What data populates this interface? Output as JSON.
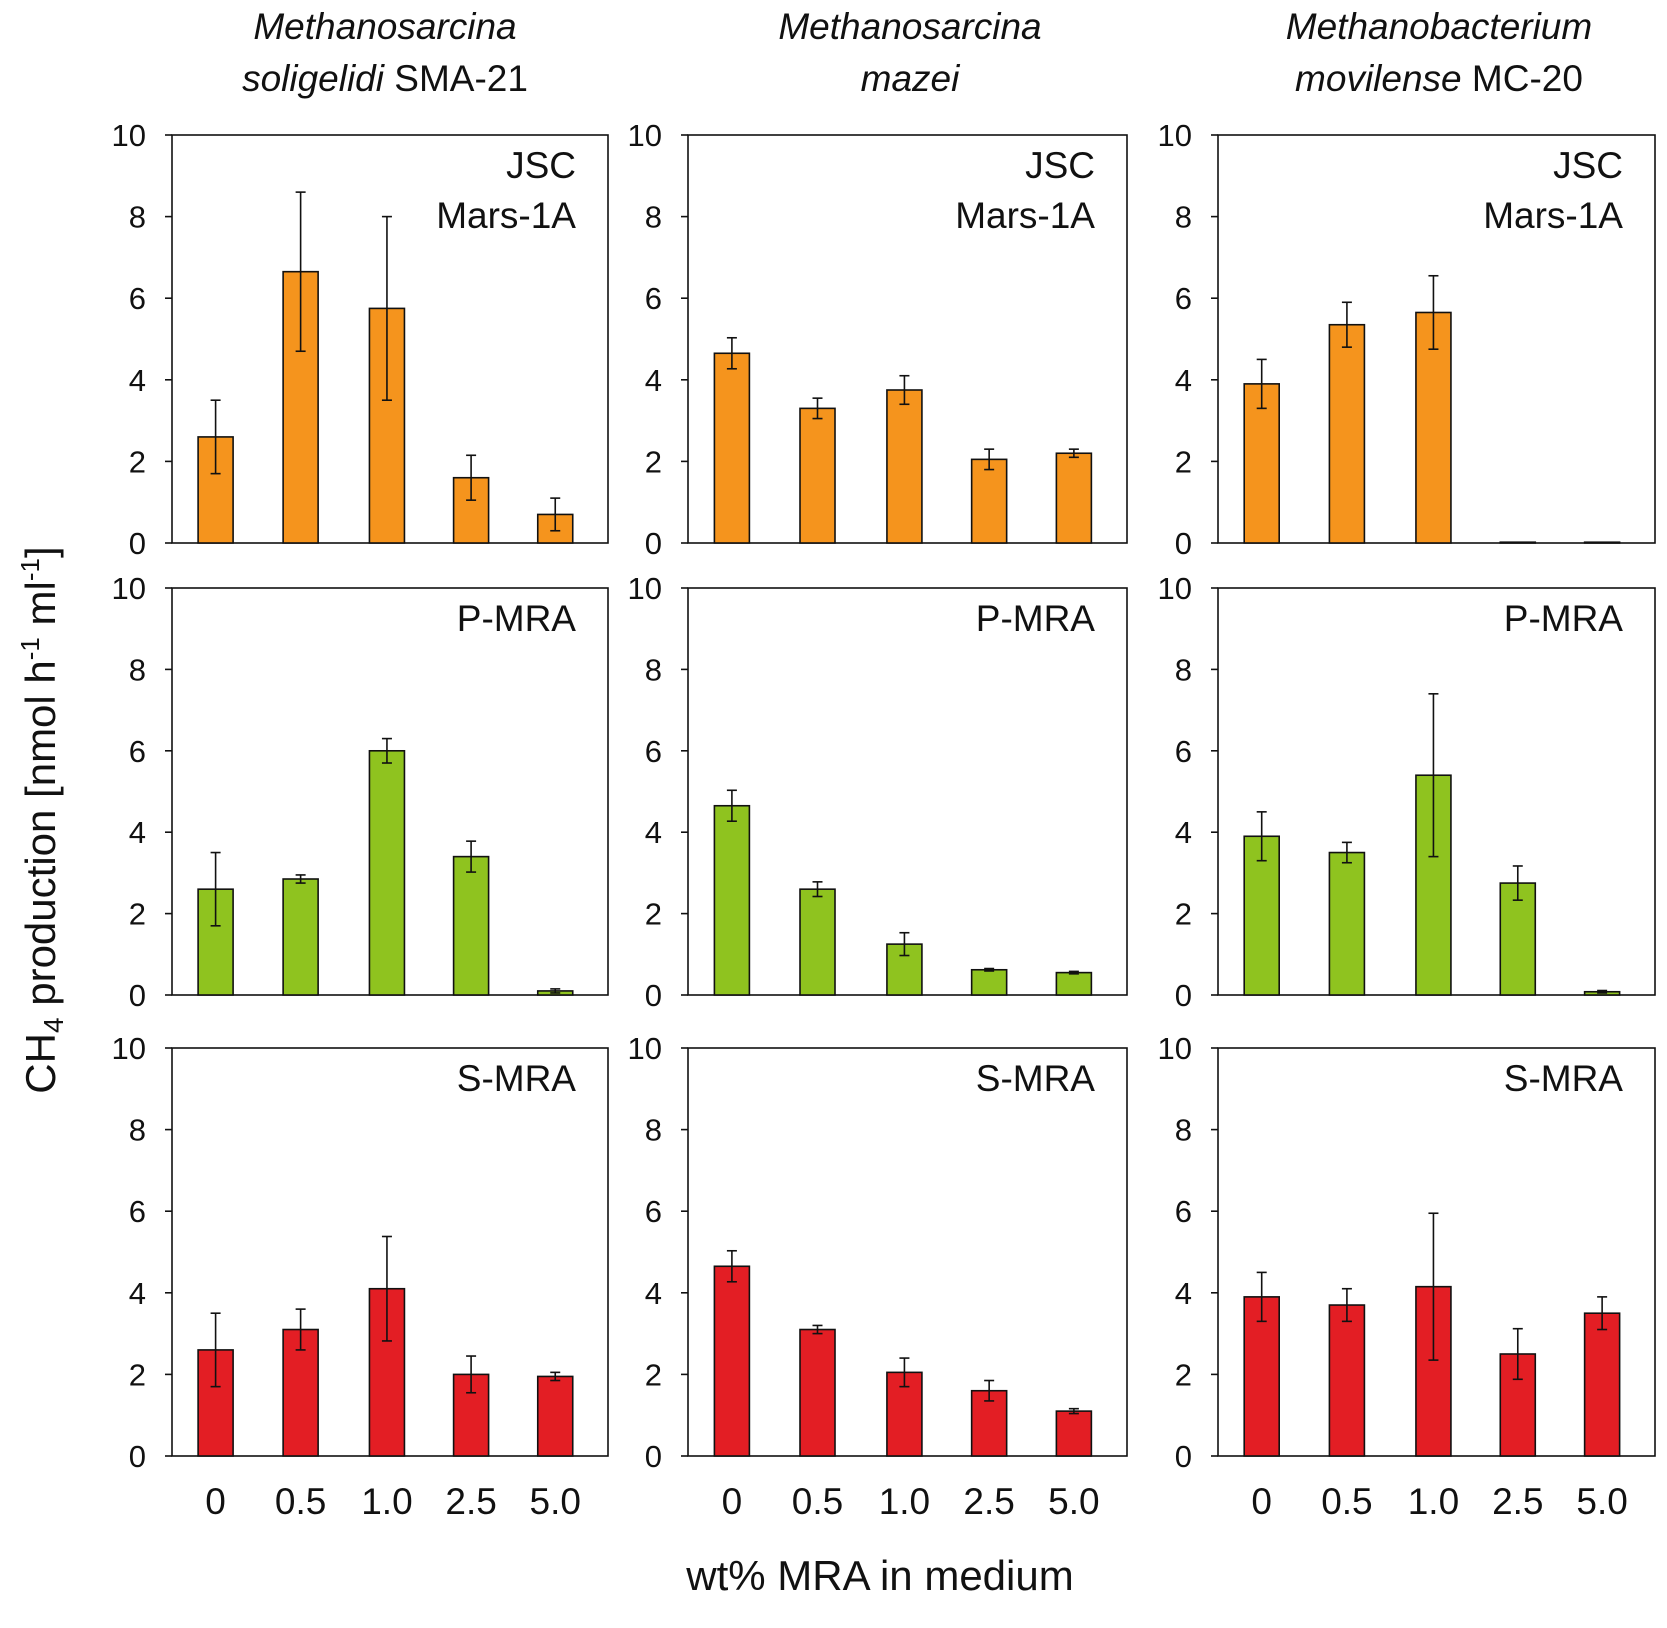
{
  "figure": {
    "xlabel": "wt% MRA in medium",
    "ylabel_main": "CH",
    "ylabel_sub": "4",
    "ylabel_rest": " production [nmol h",
    "ylabel_sup1": "-1",
    "ylabel_mid": " ml",
    "ylabel_sup2": "-1",
    "ylabel_end": "]"
  },
  "columns": [
    {
      "italic_line1": "Methanosarcina",
      "italic_line2": "soligelidi",
      "plain_line2": " SMA-21"
    },
    {
      "italic_line1": "Methanosarcina",
      "italic_line2": "mazei",
      "plain_line2": ""
    },
    {
      "italic_line1": "Methanobacterium",
      "italic_line2": "movilense",
      "plain_line2": " MC-20"
    }
  ],
  "colors": {
    "JSC Mars-1A": "#f5941d",
    "P-MRA": "#8fc31f",
    "S-MRA": "#e31e24",
    "axis": "#111111"
  },
  "chart_data": [
    {
      "type": "bar",
      "organism": "Methanosarcina soligelidi SMA-21",
      "medium": "JSC Mars-1A",
      "panel_label": [
        "JSC",
        "Mars-1A"
      ],
      "categories": [
        "0",
        "0.5",
        "1.0",
        "2.5",
        "5.0"
      ],
      "values": [
        2.6,
        6.65,
        5.75,
        1.6,
        0.7
      ],
      "errors": [
        0.9,
        1.95,
        2.25,
        0.55,
        0.4
      ],
      "yticks": [
        "0",
        "2",
        "4",
        "6",
        "8",
        "10"
      ],
      "ylim": [
        0,
        10
      ],
      "xlabel": "wt% MRA in medium"
    },
    {
      "type": "bar",
      "organism": "Methanosarcina mazei",
      "medium": "JSC Mars-1A",
      "panel_label": [
        "JSC",
        "Mars-1A"
      ],
      "categories": [
        "0",
        "0.5",
        "1.0",
        "2.5",
        "5.0"
      ],
      "values": [
        4.65,
        3.3,
        3.75,
        2.05,
        2.2
      ],
      "errors": [
        0.38,
        0.25,
        0.35,
        0.25,
        0.1
      ],
      "yticks": [
        "0",
        "2",
        "4",
        "6",
        "8",
        "10"
      ],
      "ylim": [
        0,
        10
      ],
      "xlabel": "wt% MRA in medium"
    },
    {
      "type": "bar",
      "organism": "Methanobacterium movilense MC-20",
      "medium": "JSC Mars-1A",
      "panel_label": [
        "JSC",
        "Mars-1A"
      ],
      "categories": [
        "0",
        "0.5",
        "1.0",
        "2.5",
        "5.0"
      ],
      "values": [
        3.9,
        5.35,
        5.65,
        0.02,
        0.0
      ],
      "errors": [
        0.6,
        0.55,
        0.9,
        0.0,
        0.0
      ],
      "yticks": [
        "0",
        "2",
        "4",
        "6",
        "8",
        "10"
      ],
      "ylim": [
        0,
        10
      ],
      "xlabel": "wt% MRA in medium"
    },
    {
      "type": "bar",
      "organism": "Methanosarcina soligelidi SMA-21",
      "medium": "P-MRA",
      "panel_label": [
        "P-MRA"
      ],
      "categories": [
        "0",
        "0.5",
        "1.0",
        "2.5",
        "5.0"
      ],
      "values": [
        2.6,
        2.85,
        6.0,
        3.4,
        0.1
      ],
      "errors": [
        0.9,
        0.1,
        0.3,
        0.38,
        0.05
      ],
      "yticks": [
        "0",
        "2",
        "4",
        "6",
        "8",
        "10"
      ],
      "ylim": [
        0,
        10
      ],
      "xlabel": "wt% MRA in medium"
    },
    {
      "type": "bar",
      "organism": "Methanosarcina mazei",
      "medium": "P-MRA",
      "panel_label": [
        "P-MRA"
      ],
      "categories": [
        "0",
        "0.5",
        "1.0",
        "2.5",
        "5.0"
      ],
      "values": [
        4.65,
        2.6,
        1.25,
        0.62,
        0.55
      ],
      "errors": [
        0.38,
        0.18,
        0.28,
        0.03,
        0.03
      ],
      "yticks": [
        "0",
        "2",
        "4",
        "6",
        "8",
        "10"
      ],
      "ylim": [
        0,
        10
      ],
      "xlabel": "wt% MRA in medium"
    },
    {
      "type": "bar",
      "organism": "Methanobacterium movilense MC-20",
      "medium": "P-MRA",
      "panel_label": [
        "P-MRA"
      ],
      "categories": [
        "0",
        "0.5",
        "1.0",
        "2.5",
        "5.0"
      ],
      "values": [
        3.9,
        3.5,
        5.4,
        2.75,
        0.08
      ],
      "errors": [
        0.6,
        0.25,
        2.0,
        0.42,
        0.03
      ],
      "yticks": [
        "0",
        "2",
        "4",
        "6",
        "8",
        "10"
      ],
      "ylim": [
        0,
        10
      ],
      "xlabel": "wt% MRA in medium"
    },
    {
      "type": "bar",
      "organism": "Methanosarcina soligelidi SMA-21",
      "medium": "S-MRA",
      "panel_label": [
        "S-MRA"
      ],
      "categories": [
        "0",
        "0.5",
        "1.0",
        "2.5",
        "5.0"
      ],
      "values": [
        2.6,
        3.1,
        4.1,
        2.0,
        1.95
      ],
      "errors": [
        0.9,
        0.5,
        1.28,
        0.45,
        0.1
      ],
      "yticks": [
        "0",
        "2",
        "4",
        "6",
        "8",
        "10"
      ],
      "ylim": [
        0,
        10
      ],
      "xlabel": "wt% MRA in medium"
    },
    {
      "type": "bar",
      "organism": "Methanosarcina mazei",
      "medium": "S-MRA",
      "panel_label": [
        "S-MRA"
      ],
      "categories": [
        "0",
        "0.5",
        "1.0",
        "2.5",
        "5.0"
      ],
      "values": [
        4.65,
        3.1,
        2.05,
        1.6,
        1.1
      ],
      "errors": [
        0.38,
        0.1,
        0.35,
        0.25,
        0.06
      ],
      "yticks": [
        "0",
        "2",
        "4",
        "6",
        "8",
        "10"
      ],
      "ylim": [
        0,
        10
      ],
      "xlabel": "wt% MRA in medium"
    },
    {
      "type": "bar",
      "organism": "Methanobacterium movilense MC-20",
      "medium": "S-MRA",
      "panel_label": [
        "S-MRA"
      ],
      "categories": [
        "0",
        "0.5",
        "1.0",
        "2.5",
        "5.0"
      ],
      "values": [
        3.9,
        3.7,
        4.15,
        2.5,
        3.5
      ],
      "errors": [
        0.6,
        0.4,
        1.8,
        0.62,
        0.4
      ],
      "yticks": [
        "0",
        "2",
        "4",
        "6",
        "8",
        "10"
      ],
      "ylim": [
        0,
        10
      ],
      "xlabel": "wt% MRA in medium"
    }
  ]
}
